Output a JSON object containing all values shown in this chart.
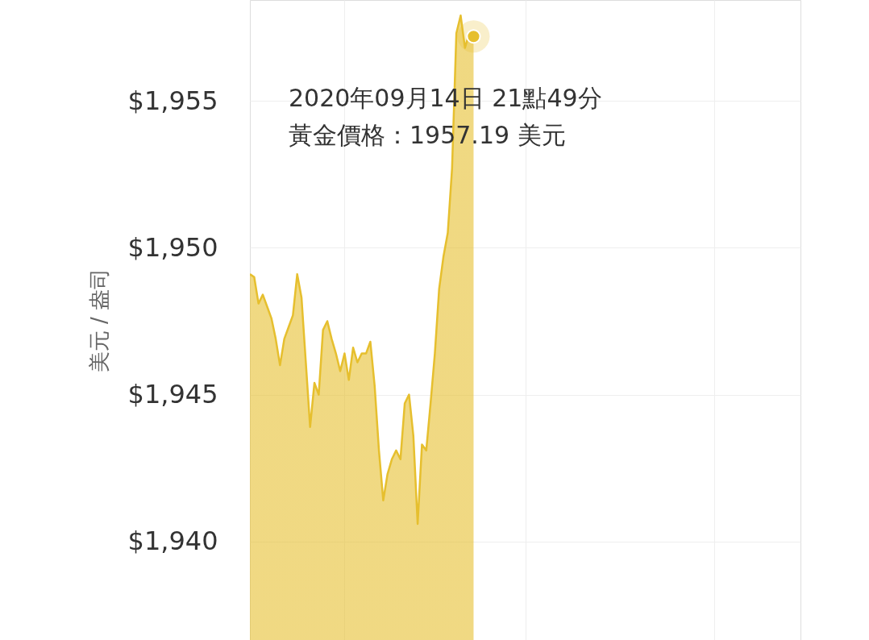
{
  "chart_data": {
    "type": "area",
    "ylabel": "美元 / 盎司",
    "categories": [
      null,
      null,
      null,
      null,
      null,
      null,
      null,
      null,
      null,
      null,
      null,
      null,
      null,
      null,
      null,
      null,
      null,
      null,
      null,
      null,
      null,
      null,
      null,
      null,
      null,
      null,
      null,
      null,
      null,
      null,
      null,
      null,
      null,
      null,
      null,
      null,
      null,
      null,
      null,
      null,
      null,
      null,
      null,
      null,
      null,
      null,
      null,
      null,
      null,
      null,
      null,
      null,
      null,
      null,
      null,
      null,
      null,
      null,
      null,
      null,
      null,
      null,
      null,
      null,
      null,
      null,
      null,
      null,
      null,
      null,
      null,
      null,
      null,
      null,
      null,
      null,
      null,
      null,
      null,
      null,
      null,
      null,
      null,
      null,
      null,
      null,
      null,
      null,
      null,
      null,
      null,
      null,
      null,
      null,
      null,
      null,
      null,
      null,
      null,
      null,
      null,
      null,
      null,
      null,
      null,
      null,
      null,
      null,
      null,
      null,
      null,
      null,
      null,
      null,
      null,
      null,
      null,
      null,
      null,
      null,
      null,
      null,
      null,
      null,
      null,
      null,
      null,
      null,
      null
    ],
    "series": [
      {
        "color": "#e6bf2e",
        "values": [
          1949.1,
          1949.0,
          1948.1,
          1948.4,
          1948.0,
          1947.6,
          1946.9,
          1946.0,
          1946.9,
          1947.3,
          1947.7,
          1949.1,
          1948.3,
          1946.1,
          1943.9,
          1945.4,
          1945.0,
          1947.2,
          1947.5,
          1946.9,
          1946.4,
          1945.8,
          1946.4,
          1945.5,
          1946.6,
          1946.1,
          1946.4,
          1946.4,
          1946.8,
          1945.3,
          1943.1,
          1941.4,
          1942.3,
          1942.8,
          1943.1,
          1942.8,
          1944.7,
          1945.0,
          1943.6,
          1940.6,
          1943.3,
          1943.1,
          1944.7,
          1946.4,
          1948.6,
          1949.7,
          1950.5,
          1952.7,
          1957.3,
          1957.9,
          1956.8,
          1957.3,
          1957.19,
          null,
          null,
          null,
          null,
          null,
          null,
          null,
          null,
          null,
          null,
          null,
          null,
          null,
          null,
          null,
          null,
          null,
          null,
          null,
          null,
          null,
          null,
          null,
          null,
          null,
          null,
          null,
          null,
          null,
          null,
          null,
          null,
          null,
          null,
          null,
          null,
          null,
          null,
          null,
          null,
          null,
          null,
          null,
          null,
          null,
          null,
          null,
          null,
          null,
          null,
          null,
          null,
          null,
          null,
          null,
          null,
          null,
          null,
          null,
          null,
          null,
          null,
          null,
          null,
          null,
          null,
          null,
          null,
          null,
          null,
          null,
          null,
          null,
          null,
          null,
          null
        ]
      }
    ],
    "ylim": [
      1936.65,
      1958.43
    ],
    "yticks": [
      {
        "value": 1940,
        "label": "$1,940"
      },
      {
        "value": 1945,
        "label": "$1,945"
      },
      {
        "value": 1950,
        "label": "$1,950"
      },
      {
        "value": 1955,
        "label": "$1,955"
      }
    ],
    "grid": true,
    "tick_labels": "y",
    "annotations": [
      "2020年09月14日 21點49分",
      "黃金價格：1957.19 美元"
    ]
  }
}
